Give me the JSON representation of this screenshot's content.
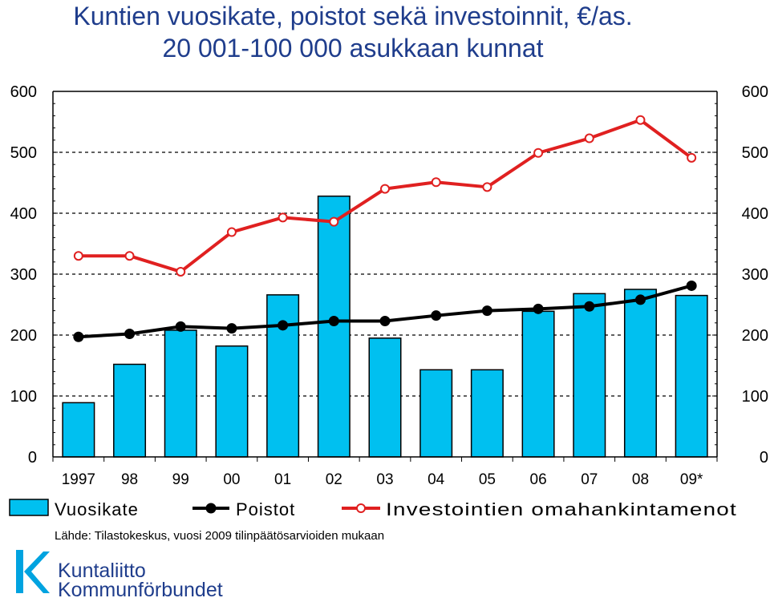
{
  "title_line1": "Kuntien vuosikate, poistot sekä investoinnit, €/as.",
  "title_line2": "20 001-100 000 asukkaan kunnat",
  "source": "Lähde: Tilastokeskus, vuosi 2009 tilinpäätösarvioiden mukaan",
  "logo": {
    "line1": "Kuntaliitto",
    "line2": "Kommunförbundet",
    "brand_color": "#1f3d8c",
    "accent_color": "#00a3e0"
  },
  "chart_data": {
    "type": "bar",
    "title": "",
    "xlabel": "",
    "ylabel": "",
    "ylim": [
      0,
      600
    ],
    "yticks": [
      "0",
      "100",
      "200",
      "300",
      "400",
      "500",
      "600"
    ],
    "categories": [
      "1997",
      "98",
      "99",
      "00",
      "01",
      "02",
      "03",
      "04",
      "05",
      "06",
      "07",
      "08",
      "09*"
    ],
    "grid": "dashed horizontal",
    "legend_position": "bottom",
    "series": [
      {
        "name": "Vuosikate",
        "kind": "bar",
        "color": "#00c0f0",
        "values": [
          89,
          152,
          208,
          182,
          266,
          428,
          195,
          143,
          143,
          239,
          268,
          275,
          265
        ]
      },
      {
        "name": "Poistot",
        "kind": "line",
        "color": "#000000",
        "marker": "filled-circle",
        "values": [
          197,
          202,
          214,
          211,
          216,
          223,
          223,
          232,
          240,
          243,
          247,
          258,
          281
        ]
      },
      {
        "name": "Investointien omahankintamenot",
        "kind": "line",
        "color": "#e02020",
        "marker": "open-circle",
        "values": [
          330,
          330,
          304,
          369,
          393,
          386,
          440,
          451,
          443,
          499,
          523,
          553,
          491
        ]
      }
    ]
  }
}
